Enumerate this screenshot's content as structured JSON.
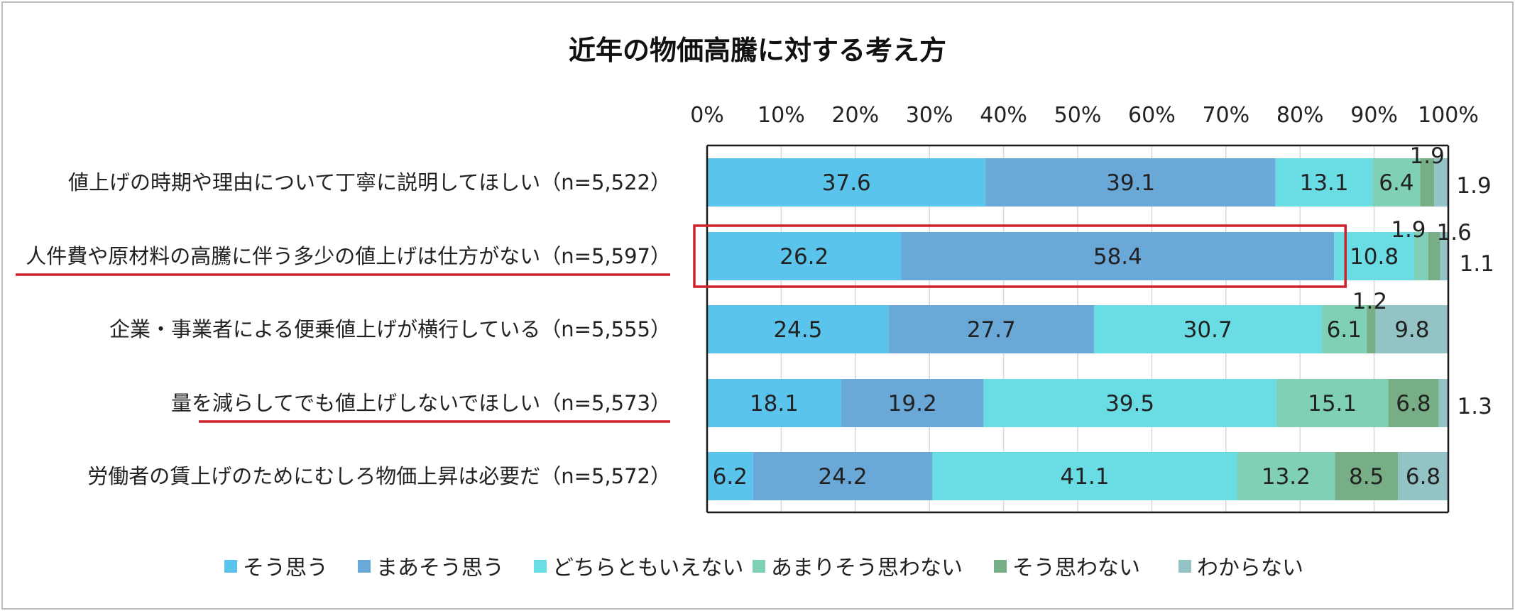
{
  "chart_data": {
    "type": "bar",
    "orientation": "horizontal",
    "stacked": "percent",
    "title": "近年の物価高騰に対する考え方",
    "xlabel": "",
    "ylabel": "",
    "xlim": [
      0,
      100
    ],
    "ticks": [
      "0%",
      "10%",
      "20%",
      "30%",
      "40%",
      "50%",
      "60%",
      "70%",
      "80%",
      "90%",
      "100%"
    ],
    "legend_position": "bottom",
    "categories": [
      "値上げの時期や理由について丁寧に説明してほしい（n=5,522）",
      "人件費や原材料の高騰に伴う多少の値上げは仕方がない（n=5,597）",
      "企業・事業者による便乗値上げが横行している（n=5,555）",
      "量を減らしてでも値上げしないでほしい（n=5,573）",
      "労働者の賃上げのためにむしろ物価上昇は必要だ（n=5,572）"
    ],
    "series": [
      {
        "name": "そう思う",
        "color": "#5BC4EC",
        "values": [
          37.6,
          26.2,
          24.5,
          18.1,
          6.2
        ]
      },
      {
        "name": "まあそう思う",
        "color": "#6AA8D8",
        "values": [
          39.1,
          58.4,
          27.7,
          19.2,
          24.2
        ]
      },
      {
        "name": "どちらともいえない",
        "color": "#6ADCE3",
        "values": [
          13.1,
          10.8,
          30.7,
          39.5,
          41.1
        ]
      },
      {
        "name": "あまりそう思わない",
        "color": "#7FD0B6",
        "values": [
          6.4,
          1.9,
          6.1,
          15.1,
          13.2
        ]
      },
      {
        "name": "そう思わない",
        "color": "#77AE86",
        "values": [
          1.9,
          1.6,
          1.2,
          6.8,
          8.5
        ]
      },
      {
        "name": "わからない",
        "color": "#94C3C6",
        "values": [
          1.9,
          1.1,
          9.8,
          1.3,
          6.8
        ]
      }
    ],
    "highlighted_rows": [
      1
    ],
    "underlined_rows": [
      1,
      3
    ],
    "highlight_color": "#D0202A"
  }
}
